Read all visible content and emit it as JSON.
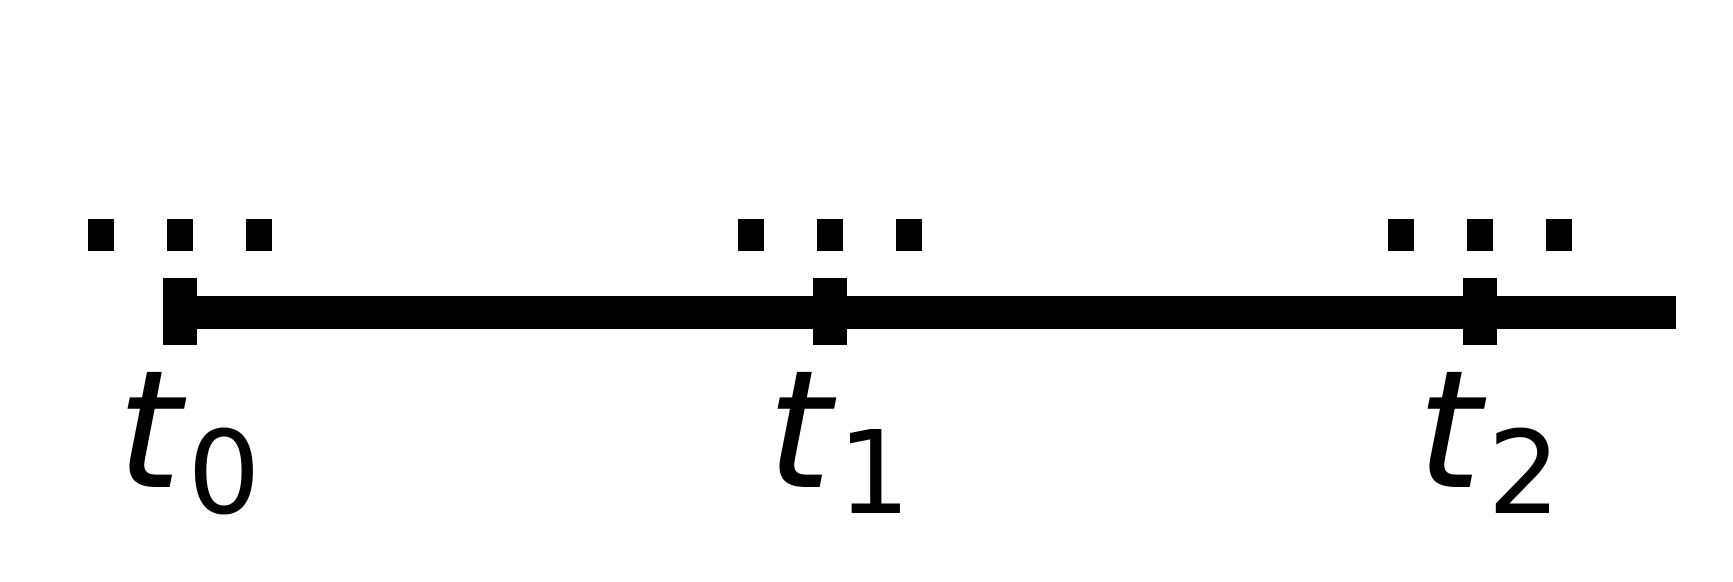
{
  "timeline": {
    "colors": {
      "stroke": "#000000",
      "background": "#ffffff"
    },
    "ticks": [
      {
        "var": "t",
        "sub": "0",
        "ellipsis_dots": 3
      },
      {
        "var": "t",
        "sub": "1",
        "ellipsis_dots": 3
      },
      {
        "var": "t",
        "sub": "2",
        "ellipsis_dots": 3
      }
    ]
  }
}
